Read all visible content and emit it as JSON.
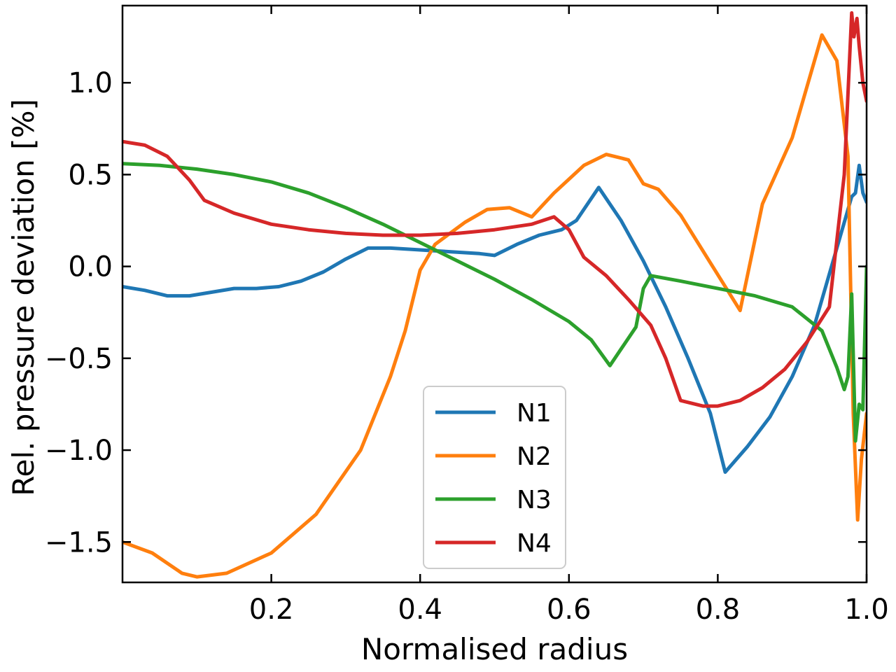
{
  "chart_data": {
    "type": "line",
    "title": "",
    "xlabel": "Normalised radius",
    "ylabel": "Rel. pressure deviation [%]",
    "xlim": [
      0.0,
      1.0
    ],
    "ylim": [
      -1.72,
      1.42
    ],
    "xticks": [
      0.2,
      0.4,
      0.6,
      0.8,
      1.0
    ],
    "xtick_labels": [
      "0.2",
      "0.4",
      "0.6",
      "0.8",
      "1.0"
    ],
    "yticks": [
      -1.5,
      -1.0,
      -0.5,
      0.0,
      0.5,
      1.0
    ],
    "ytick_labels": [
      "−1.5",
      "−1.0",
      "−0.5",
      "0.0",
      "0.5",
      "1.0"
    ],
    "grid": false,
    "legend_position": "lower-center",
    "series": [
      {
        "name": "N1",
        "color": "#1f77b4",
        "x": [
          0.0,
          0.03,
          0.06,
          0.09,
          0.12,
          0.15,
          0.18,
          0.21,
          0.24,
          0.27,
          0.3,
          0.33,
          0.36,
          0.4,
          0.44,
          0.48,
          0.5,
          0.53,
          0.56,
          0.59,
          0.61,
          0.64,
          0.67,
          0.7,
          0.73,
          0.76,
          0.79,
          0.81,
          0.84,
          0.87,
          0.9,
          0.93,
          0.96,
          0.98,
          0.985,
          0.99,
          0.995,
          1.0
        ],
        "y": [
          -0.11,
          -0.13,
          -0.16,
          -0.16,
          -0.14,
          -0.12,
          -0.12,
          -0.11,
          -0.08,
          -0.03,
          0.04,
          0.1,
          0.1,
          0.09,
          0.08,
          0.07,
          0.06,
          0.12,
          0.17,
          0.2,
          0.25,
          0.43,
          0.25,
          0.03,
          -0.22,
          -0.5,
          -0.8,
          -1.12,
          -0.98,
          -0.82,
          -0.6,
          -0.32,
          0.1,
          0.38,
          0.4,
          0.55,
          0.4,
          0.35
        ]
      },
      {
        "name": "N2",
        "color": "#ff7f0e",
        "x": [
          0.0,
          0.04,
          0.08,
          0.1,
          0.14,
          0.2,
          0.26,
          0.32,
          0.36,
          0.38,
          0.4,
          0.42,
          0.46,
          0.49,
          0.52,
          0.55,
          0.58,
          0.62,
          0.65,
          0.68,
          0.7,
          0.72,
          0.75,
          0.79,
          0.83,
          0.86,
          0.9,
          0.94,
          0.96,
          0.975,
          0.982,
          0.988,
          0.993,
          1.0
        ],
        "y": [
          -1.5,
          -1.56,
          -1.67,
          -1.69,
          -1.67,
          -1.56,
          -1.35,
          -1.0,
          -0.6,
          -0.35,
          -0.02,
          0.12,
          0.24,
          0.31,
          0.32,
          0.27,
          0.4,
          0.55,
          0.61,
          0.58,
          0.45,
          0.42,
          0.28,
          0.02,
          -0.24,
          0.34,
          0.7,
          1.26,
          1.12,
          0.6,
          -0.8,
          -1.38,
          -1.05,
          -0.8
        ]
      },
      {
        "name": "N3",
        "color": "#2ca02c",
        "x": [
          0.0,
          0.05,
          0.1,
          0.15,
          0.2,
          0.25,
          0.3,
          0.35,
          0.4,
          0.45,
          0.5,
          0.55,
          0.6,
          0.63,
          0.655,
          0.67,
          0.69,
          0.7,
          0.71,
          0.75,
          0.8,
          0.85,
          0.9,
          0.94,
          0.96,
          0.97,
          0.975,
          0.98,
          0.985,
          0.99,
          0.995,
          1.0
        ],
        "y": [
          0.56,
          0.55,
          0.53,
          0.5,
          0.46,
          0.4,
          0.32,
          0.23,
          0.13,
          0.03,
          -0.07,
          -0.18,
          -0.3,
          -0.4,
          -0.54,
          -0.45,
          -0.33,
          -0.12,
          -0.05,
          -0.08,
          -0.12,
          -0.16,
          -0.22,
          -0.35,
          -0.55,
          -0.67,
          -0.6,
          -0.15,
          -0.95,
          -0.75,
          -0.78,
          0.0
        ]
      },
      {
        "name": "N4",
        "color": "#d62728",
        "x": [
          0.0,
          0.03,
          0.06,
          0.09,
          0.11,
          0.15,
          0.2,
          0.25,
          0.3,
          0.35,
          0.4,
          0.45,
          0.5,
          0.55,
          0.58,
          0.6,
          0.62,
          0.65,
          0.68,
          0.71,
          0.73,
          0.75,
          0.78,
          0.8,
          0.83,
          0.86,
          0.89,
          0.92,
          0.95,
          0.97,
          0.98,
          0.983,
          0.987,
          0.99,
          0.995,
          1.0
        ],
        "y": [
          0.68,
          0.66,
          0.6,
          0.47,
          0.36,
          0.29,
          0.23,
          0.2,
          0.18,
          0.17,
          0.17,
          0.18,
          0.2,
          0.23,
          0.27,
          0.2,
          0.05,
          -0.05,
          -0.18,
          -0.32,
          -0.5,
          -0.73,
          -0.76,
          -0.76,
          -0.73,
          -0.66,
          -0.56,
          -0.41,
          -0.22,
          0.5,
          1.38,
          1.25,
          1.35,
          1.2,
          1.0,
          0.9
        ]
      }
    ]
  }
}
